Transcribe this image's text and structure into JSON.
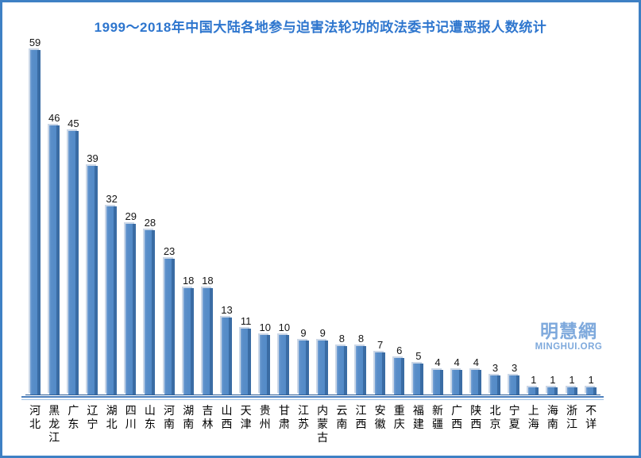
{
  "title": "1999～2018年中国大陆各地参与迫害法轮功的政法委书记遭恶报人数统计",
  "watermark": {
    "cn": "明慧網",
    "en": "MINGHUI.ORG"
  },
  "colors": {
    "title_text": "#2E76CE",
    "bar_fill": "#528AC7",
    "bar_edge_dark": "#3A6CA4",
    "bar_highlight": "#79A4D6",
    "axis_line": "#4D80BD",
    "frame_border": "#3E80C4",
    "watermark": "#7EA9DC",
    "value_label": "#141414"
  },
  "chart_data": {
    "type": "bar",
    "title": "1999～2018年中国大陆各地参与迫害法轮功的政法委书记遭恶报人数统计",
    "categories": [
      "河北",
      "黑龙江",
      "广东",
      "辽宁",
      "湖北",
      "四川",
      "山东",
      "河南",
      "湖南",
      "吉林",
      "山西",
      "天津",
      "贵州",
      "甘肃",
      "江苏",
      "内蒙古",
      "云南",
      "江西",
      "安徽",
      "重庆",
      "福建",
      "新疆",
      "广西",
      "陕西",
      "北京",
      "宁夏",
      "上海",
      "海南",
      "浙江",
      "不详"
    ],
    "values": [
      59,
      46,
      45,
      39,
      32,
      29,
      28,
      23,
      18,
      18,
      13,
      11,
      10,
      10,
      9,
      9,
      8,
      8,
      7,
      6,
      5,
      4,
      4,
      4,
      3,
      3,
      1,
      1,
      1,
      1
    ],
    "xlabel": "",
    "ylabel": "",
    "ylim": [
      0,
      60
    ],
    "grid": false,
    "legend": false,
    "value_labels": true,
    "bar_style": "3d-bevel"
  }
}
